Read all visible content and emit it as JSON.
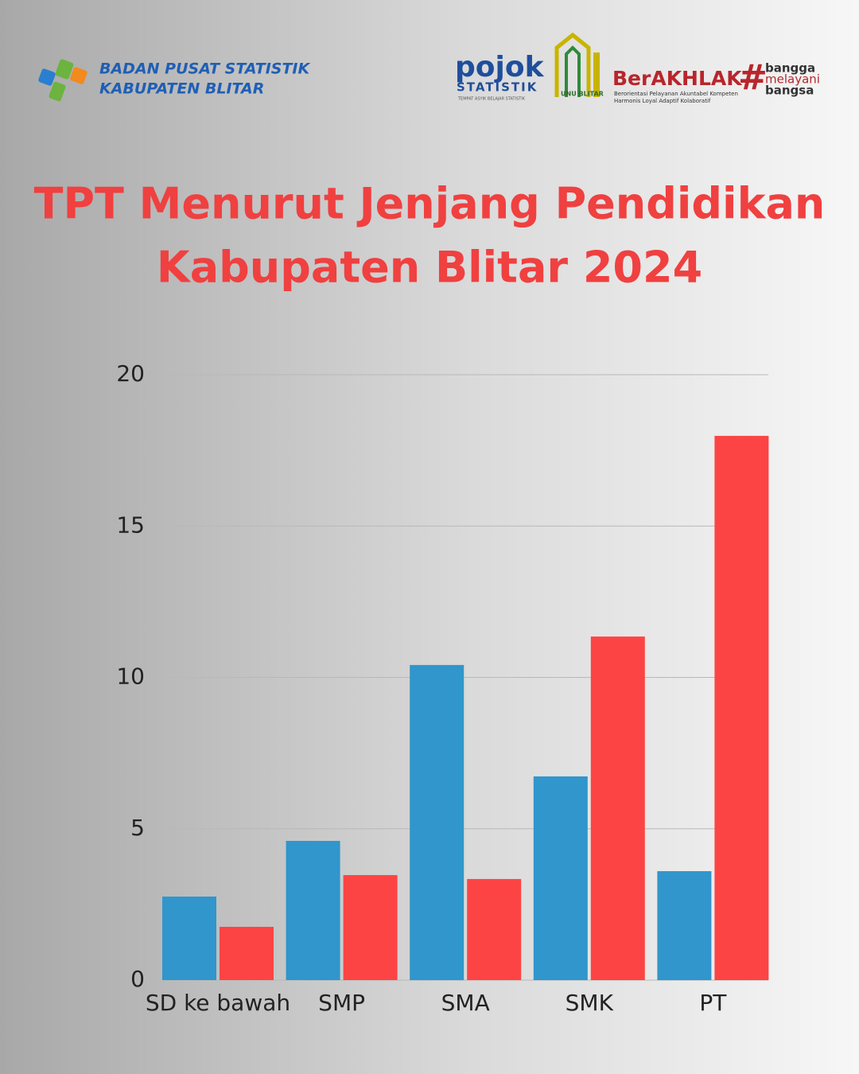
{
  "header": {
    "agency": [
      "BADAN PUSAT STATISTIK",
      "KABUPATEN BLITAR"
    ],
    "pojok": "pojok",
    "pojok_sub": "STATISTIK",
    "pojok_tagline": "TEMPAT ASYIK BELAJAR STATISTIK",
    "unu": "UNU BLITAR",
    "berakhlak": "BerAKHLAK",
    "berakhlak_lines": [
      "Berorientasi Pelayanan Akuntabel Kompeten",
      "Harmonis Loyal Adaptif Kolaboratif"
    ],
    "hash": "#",
    "slogan": [
      "bangga",
      "melayani",
      "bangsa"
    ]
  },
  "chart_data": {
    "type": "bar",
    "title": [
      "TPT Menurut Jenjang Pendidikan",
      "Kabupaten Blitar 2024"
    ],
    "categories": [
      "SD ke bawah",
      "SMP",
      "SMA",
      "SMK",
      "PT"
    ],
    "series": [
      {
        "color": "#3096cc",
        "values": [
          2.76,
          4.6,
          10.41,
          6.73,
          3.6
        ]
      },
      {
        "color": "#fd4444",
        "values": [
          1.76,
          3.47,
          3.34,
          11.35,
          17.98
        ]
      }
    ],
    "ylim": [
      0,
      20
    ],
    "yticks": [
      0,
      5,
      10,
      15,
      20
    ],
    "grid": true
  }
}
